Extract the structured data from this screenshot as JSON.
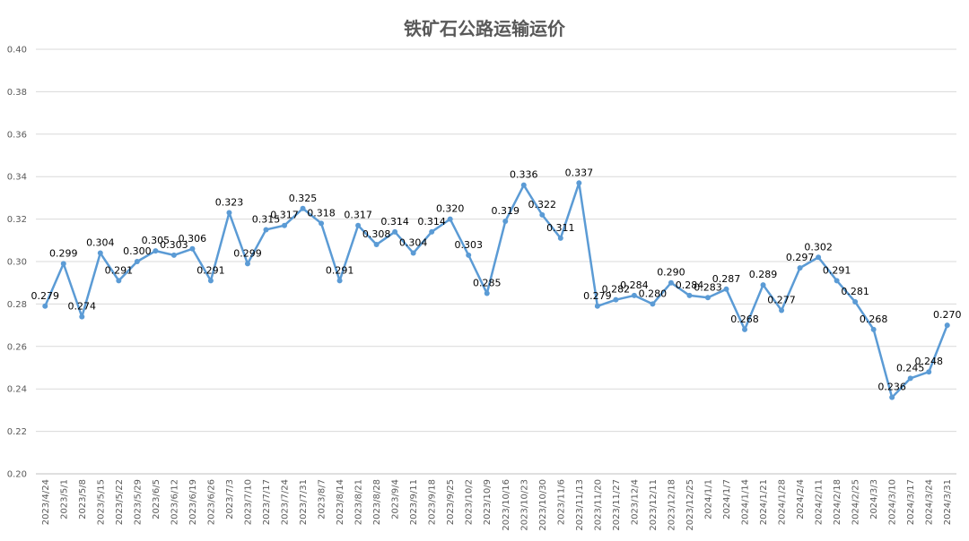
{
  "chart_data": {
    "type": "line",
    "title": "铁矿石公路运输运价",
    "xlabel": "",
    "ylabel": "",
    "ylim": [
      0.2,
      0.4
    ],
    "yticks": [
      "0.20",
      "0.22",
      "0.24",
      "0.26",
      "0.28",
      "0.30",
      "0.32",
      "0.34",
      "0.36",
      "0.38",
      "0.40"
    ],
    "grid": true,
    "legend": "none",
    "line_color": "#5B9BD5",
    "categories": [
      "2023/4/24",
      "2023/5/1",
      "2023/5/8",
      "2023/5/15",
      "2023/5/22",
      "2023/5/29",
      "2023/6/5",
      "2023/6/12",
      "2023/6/19",
      "2023/6/26",
      "2023/7/3",
      "2023/7/10",
      "2023/7/17",
      "2023/7/24",
      "2023/7/31",
      "2023/8/7",
      "2023/8/14",
      "2023/8/21",
      "2023/8/28",
      "2023/9/4",
      "2023/9/11",
      "2023/9/18",
      "2023/9/25",
      "2023/10/2",
      "2023/10/9",
      "2023/10/16",
      "2023/10/23",
      "2023/10/30",
      "2023/11/6",
      "2023/11/13",
      "2023/11/20",
      "2023/11/27",
      "2023/12/4",
      "2023/12/11",
      "2023/12/18",
      "2023/12/25",
      "2024/1/1",
      "2024/1/7",
      "2024/1/14",
      "2024/1/21",
      "2024/1/28",
      "2024/2/4",
      "2024/2/11",
      "2024/2/18",
      "2024/2/25",
      "2024/3/3",
      "2024/3/10",
      "2024/3/17",
      "2024/3/24",
      "2024/3/31"
    ],
    "values": [
      0.279,
      0.299,
      0.274,
      0.304,
      0.291,
      0.3,
      0.305,
      0.303,
      0.306,
      0.291,
      0.323,
      0.299,
      0.315,
      0.317,
      0.325,
      0.318,
      0.291,
      0.317,
      0.308,
      0.314,
      0.304,
      0.314,
      0.32,
      0.303,
      0.285,
      0.319,
      0.336,
      0.322,
      0.311,
      0.337,
      0.279,
      0.282,
      0.284,
      0.28,
      0.29,
      0.284,
      0.283,
      0.287,
      0.268,
      0.289,
      0.277,
      0.297,
      0.302,
      0.291,
      0.281,
      0.268,
      0.236,
      0.245,
      0.248,
      0.27
    ],
    "data_labels": [
      "0.279",
      "0.299",
      "0.274",
      "0.304",
      "0.291",
      "0.300",
      "0.305",
      "0.303",
      "0.306",
      "0.291",
      "0.323",
      "0.299",
      "0.315",
      "0.317",
      "0.325",
      "0.318",
      "0.291",
      "0.317",
      "0.308",
      "0.314",
      "0.304",
      "0.314",
      "0.320",
      "0.303",
      "0.285",
      "0.319",
      "0.336",
      "0.322",
      "0.311",
      "0.337",
      "0.279",
      "0.282",
      "0.284",
      "0.280",
      "0.290",
      "0.284",
      "0.283",
      "0.287",
      "0.268",
      "0.289",
      "0.277",
      "0.297",
      "0.302",
      "0.291",
      "0.281",
      "0.268",
      "0.236",
      "0.245",
      "0.248",
      "0.270"
    ]
  }
}
